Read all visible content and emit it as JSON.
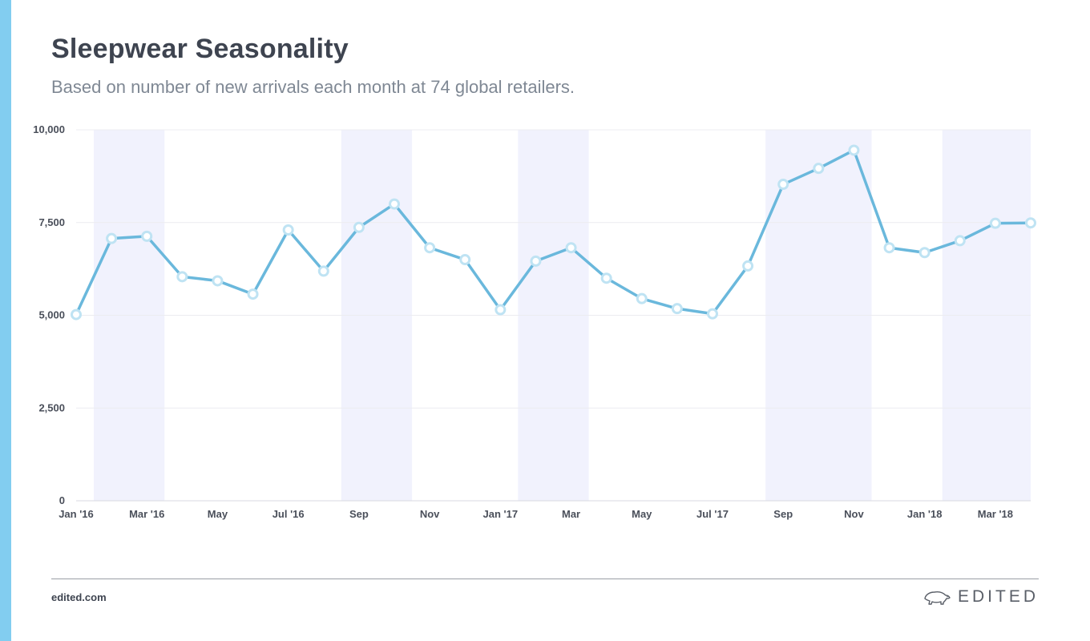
{
  "header": {
    "title": "Sleepwear Seasonality",
    "subtitle": "Based on number of new arrivals each month at 74 global retailers."
  },
  "footer": {
    "url": "edited.com",
    "brand": "EDITED",
    "brand_icon": "polar-bear-icon"
  },
  "colors": {
    "accent": "#82cdf0",
    "line": "#6ab8dc",
    "marker_fill": "#ffffff",
    "marker_stroke": "#bfe3f3",
    "band": "#f1f2fd",
    "grid": "#ececf0",
    "text": "#3e4450"
  },
  "chart_data": {
    "type": "line",
    "title": "Sleepwear Seasonality",
    "subtitle": "Based on number of new arrivals each month at 74 global retailers.",
    "xlabel": "",
    "ylabel": "",
    "ylim": [
      0,
      10000
    ],
    "yticks": [
      {
        "value": 0,
        "label": "0"
      },
      {
        "value": 2500,
        "label": "2,500"
      },
      {
        "value": 5000,
        "label": "5,000"
      },
      {
        "value": 7500,
        "label": "7,500"
      },
      {
        "value": 10000,
        "label": "10,000"
      }
    ],
    "x": [
      "2016-01",
      "2016-02",
      "2016-03",
      "2016-04",
      "2016-05",
      "2016-06",
      "2016-07",
      "2016-08",
      "2016-09",
      "2016-10",
      "2016-11",
      "2016-12",
      "2017-01",
      "2017-02",
      "2017-03",
      "2017-04",
      "2017-05",
      "2017-06",
      "2017-07",
      "2017-08",
      "2017-09",
      "2017-10",
      "2017-11",
      "2017-12",
      "2018-01",
      "2018-02",
      "2018-03",
      "2018-04"
    ],
    "xticks": [
      {
        "x": "2016-01",
        "label": "Jan '16"
      },
      {
        "x": "2016-03",
        "label": "Mar '16"
      },
      {
        "x": "2016-05",
        "label": "May"
      },
      {
        "x": "2016-07",
        "label": "Jul '16"
      },
      {
        "x": "2016-09",
        "label": "Sep"
      },
      {
        "x": "2016-11",
        "label": "Nov"
      },
      {
        "x": "2017-01",
        "label": "Jan '17"
      },
      {
        "x": "2017-03",
        "label": "Mar"
      },
      {
        "x": "2017-05",
        "label": "May"
      },
      {
        "x": "2017-07",
        "label": "Jul '17"
      },
      {
        "x": "2017-09",
        "label": "Sep"
      },
      {
        "x": "2017-11",
        "label": "Nov"
      },
      {
        "x": "2018-01",
        "label": "Jan '18"
      },
      {
        "x": "2018-03",
        "label": "Mar '18"
      }
    ],
    "series": [
      {
        "values": [
          5020,
          7070,
          7130,
          6040,
          5930,
          5570,
          7300,
          6190,
          7370,
          8000,
          6820,
          6500,
          5150,
          6460,
          6820,
          6000,
          5450,
          5180,
          5040,
          6330,
          8530,
          8960,
          9450,
          6820,
          6690,
          7010,
          7480,
          7490
        ]
      }
    ],
    "highlight_bands": [
      {
        "from": "2016-02",
        "to": "2016-03"
      },
      {
        "from": "2016-09",
        "to": "2016-10"
      },
      {
        "from": "2017-02",
        "to": "2017-03"
      },
      {
        "from": "2017-09",
        "to": "2017-11"
      },
      {
        "from": "2018-02",
        "to": "2018-04"
      }
    ],
    "grid": true,
    "legend": "none"
  }
}
